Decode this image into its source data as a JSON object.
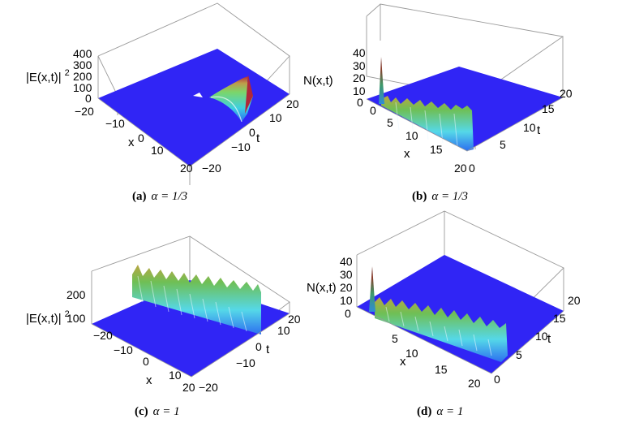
{
  "chart_data": [
    {
      "id": "a",
      "type": "surface3d",
      "caption": {
        "label": "(a)",
        "alpha": "α = 1/3"
      },
      "zlabel": "|E(x,t)|",
      "zlabel_power": "2",
      "xlabel": "x",
      "ylabel": "t",
      "xticks": [
        "−20",
        "−10",
        "0",
        "10",
        "20"
      ],
      "yticks": [
        "−20",
        "−10",
        "0",
        "10",
        "20"
      ],
      "zticks": [
        "0",
        "100",
        "200",
        "300",
        "400"
      ],
      "xlim": [
        -20,
        20
      ],
      "ylim": [
        -20,
        20
      ],
      "zlim": [
        0,
        400
      ],
      "features": [
        {
          "kind": "ridge",
          "x_range": [
            0,
            20
          ],
          "t": 0,
          "z_range": [
            60,
            420
          ]
        }
      ]
    },
    {
      "id": "b",
      "type": "surface3d",
      "caption": {
        "label": "(b)",
        "alpha": "α = 1/3"
      },
      "zlabel": "N(x,t)",
      "xlabel": "x",
      "ylabel": "t",
      "xticks": [
        "0",
        "5",
        "10",
        "15",
        "20"
      ],
      "yticks": [
        "0",
        "5",
        "10",
        "15",
        "20"
      ],
      "zticks": [
        "0",
        "10",
        "20",
        "30",
        "40"
      ],
      "xlim": [
        0,
        20
      ],
      "ylim": [
        0,
        20
      ],
      "zlim": [
        0,
        40
      ],
      "features": [
        {
          "kind": "spike",
          "x": 1,
          "t": 0,
          "z": 40
        },
        {
          "kind": "wall",
          "x_range": [
            1,
            20
          ],
          "t": 0,
          "z_range": [
            7,
            10
          ]
        }
      ]
    },
    {
      "id": "c",
      "type": "surface3d",
      "caption": {
        "label": "(c)",
        "alpha": "α = 1"
      },
      "zlabel": "|E(x,t)|",
      "zlabel_power": "2",
      "xlabel": "x",
      "ylabel": "t",
      "xticks": [
        "−20",
        "−10",
        "0",
        "10",
        "20"
      ],
      "yticks": [
        "−20",
        "−10",
        "0",
        "10",
        "20"
      ],
      "zticks": [
        "100",
        "200"
      ],
      "xlim": [
        -20,
        20
      ],
      "ylim": [
        -20,
        20
      ],
      "zlim": [
        0,
        280
      ],
      "features": [
        {
          "kind": "wall",
          "x_range": [
            -20,
            20
          ],
          "t": 0,
          "z_range": [
            220,
            270
          ]
        }
      ]
    },
    {
      "id": "d",
      "type": "surface3d",
      "caption": {
        "label": "(d)",
        "alpha": "α = 1"
      },
      "zlabel": "N(x,t)",
      "xlabel": "x",
      "ylabel": "t",
      "xticks": [
        "5",
        "10",
        "15",
        "20"
      ],
      "yticks": [
        "0",
        "5",
        "10",
        "15",
        "20"
      ],
      "zticks": [
        "0",
        "10",
        "20",
        "30",
        "40"
      ],
      "xlim": [
        0,
        20
      ],
      "ylim": [
        0,
        20
      ],
      "zlim": [
        0,
        40
      ],
      "features": [
        {
          "kind": "spike",
          "x": 1,
          "t": 0,
          "z": 38
        },
        {
          "kind": "wall",
          "x_range": [
            1,
            20
          ],
          "t": 0,
          "z_range": [
            6,
            9
          ]
        }
      ]
    }
  ]
}
